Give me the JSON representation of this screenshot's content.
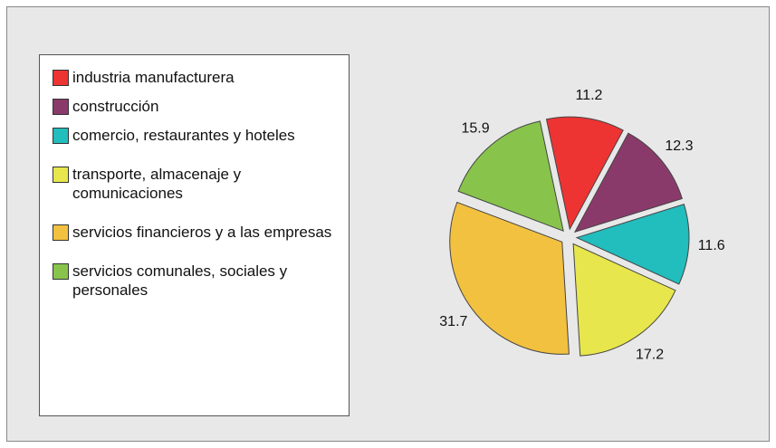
{
  "chart_data": {
    "type": "pie",
    "categories": [
      "industria manufacturera",
      "construcción",
      "comercio, restaurantes y hoteles",
      "transporte, almacenaje y comunicaciones",
      "servicios financieros y a las empresas",
      "servicios comunales, sociales y personales"
    ],
    "values": [
      11.2,
      12.3,
      11.6,
      17.2,
      31.7,
      15.9
    ],
    "colors": [
      "#ee3333",
      "#8a3a6a",
      "#22bdbd",
      "#e7e64c",
      "#f2c140",
      "#88c44b"
    ]
  }
}
